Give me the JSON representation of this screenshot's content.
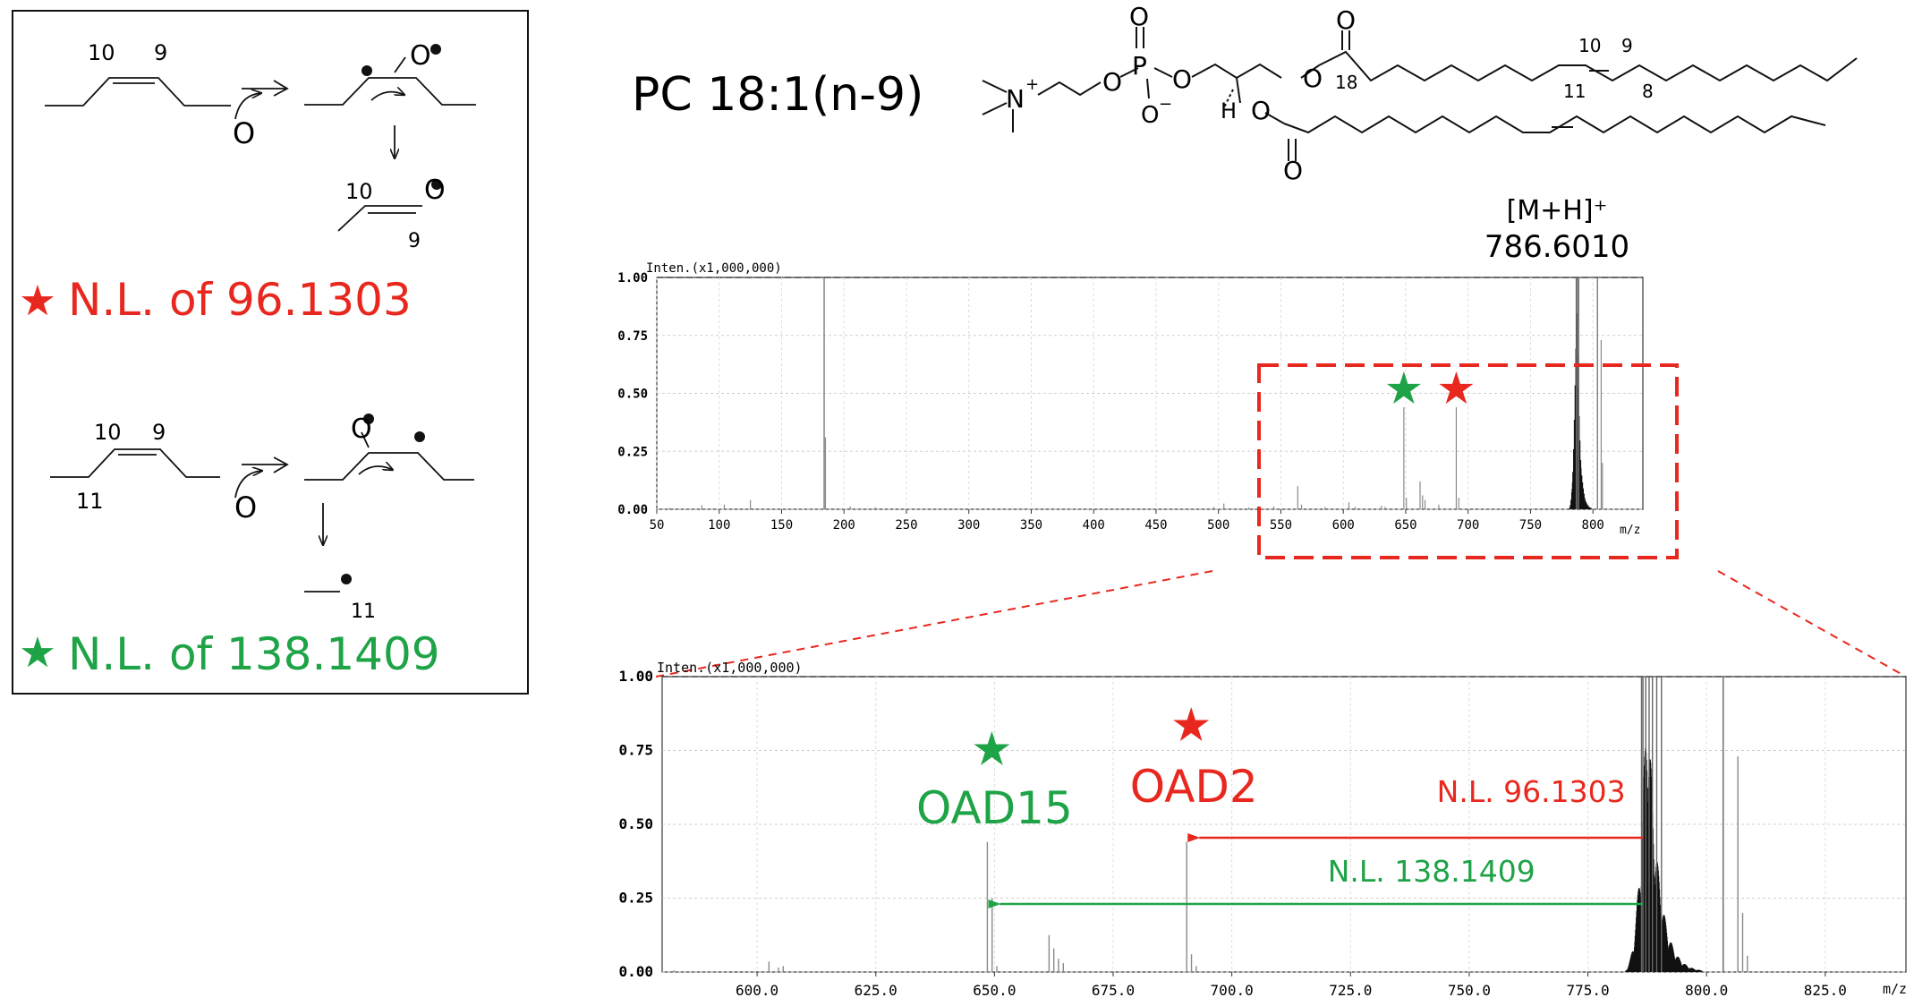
{
  "mechanism": {
    "pathway1": {
      "label_a": "10",
      "label_b": "9",
      "oxygen": "O",
      "product_label_a": "10",
      "product_label_b": "9",
      "loss_label": "N.L. of 96.1303",
      "star_color": "#e8281e"
    },
    "pathway2": {
      "label_a": "10",
      "label_b": "9",
      "label_c": "11",
      "oxygen": "O",
      "fragment_label": "11",
      "loss_label": "N.L. of 138.1409",
      "star_color": "#1fa347"
    }
  },
  "structure": {
    "name": "PC 18:1(n-9)",
    "atom_n": "N",
    "n_charge": "+",
    "atom_p": "P",
    "atom_o": "O",
    "o_minus": "O",
    "minus": "−",
    "atom_h": "H",
    "pos_10": "10",
    "pos_9": "9",
    "pos_11": "11",
    "pos_8": "8",
    "pos_18": "18"
  },
  "precursor": {
    "ion": "[M+H]⁺",
    "mz": "786.6010"
  },
  "chart_data": [
    {
      "type": "bar",
      "id": "full",
      "ylabel": "Inten.(x1,000,000)",
      "xlabel": "m/z",
      "xlim": [
        50,
        840
      ],
      "ylim": [
        0,
        1.0
      ],
      "xticks": [
        50,
        100,
        150,
        200,
        250,
        300,
        350,
        400,
        450,
        500,
        550,
        600,
        650,
        700,
        750,
        800
      ],
      "xtick_labels": [
        "50",
        "100",
        "150",
        "200",
        "250",
        "300",
        "350",
        "400",
        "450",
        "500",
        "550",
        "600",
        "650",
        "700",
        "750",
        "800"
      ],
      "yticks": [
        0,
        0.25,
        0.5,
        0.75,
        1.0
      ],
      "ytick_labels": [
        "0.00",
        "0.25",
        "0.50",
        "0.75",
        "1.00"
      ],
      "peaks": [
        {
          "mz": 60.1,
          "i": 0.006
        },
        {
          "mz": 86.1,
          "i": 0.018
        },
        {
          "mz": 104.1,
          "i": 0.02
        },
        {
          "mz": 125.0,
          "i": 0.04
        },
        {
          "mz": 184.07,
          "i": 1.0
        },
        {
          "mz": 185.1,
          "i": 0.31
        },
        {
          "mz": 205.0,
          "i": 0.012
        },
        {
          "mz": 225.0,
          "i": 0.008
        },
        {
          "mz": 496.3,
          "i": 0.01
        },
        {
          "mz": 504.3,
          "i": 0.025
        },
        {
          "mz": 524.3,
          "i": 0.008
        },
        {
          "mz": 544.3,
          "i": 0.012
        },
        {
          "mz": 563.5,
          "i": 0.1
        },
        {
          "mz": 566.5,
          "i": 0.02
        },
        {
          "mz": 585.5,
          "i": 0.01
        },
        {
          "mz": 604.5,
          "i": 0.03
        },
        {
          "mz": 609.5,
          "i": 0.01
        },
        {
          "mz": 630.5,
          "i": 0.015
        },
        {
          "mz": 633.5,
          "i": 0.01
        },
        {
          "mz": 648.5,
          "i": 0.44
        },
        {
          "mz": 650.5,
          "i": 0.05
        },
        {
          "mz": 661.5,
          "i": 0.12
        },
        {
          "mz": 663.5,
          "i": 0.06
        },
        {
          "mz": 665.5,
          "i": 0.04
        },
        {
          "mz": 676.5,
          "i": 0.02
        },
        {
          "mz": 690.5,
          "i": 0.44
        },
        {
          "mz": 692.5,
          "i": 0.05
        },
        {
          "mz": 786.6,
          "i": 1.0
        },
        {
          "mz": 787.6,
          "i": 1.0
        },
        {
          "mz": 788.6,
          "i": 1.0
        },
        {
          "mz": 803.6,
          "i": 1.0
        },
        {
          "mz": 806.6,
          "i": 0.73
        },
        {
          "mz": 807.6,
          "i": 0.2
        }
      ],
      "cluster": {
        "start": 780,
        "apex": 787,
        "end": 818
      },
      "markers": [
        {
          "mz": 648.5,
          "color": "#1fa347"
        },
        {
          "mz": 690.5,
          "color": "#e8281e"
        }
      ]
    },
    {
      "type": "bar",
      "id": "zoom",
      "ylabel": "Inten.(x1,000,000)",
      "xlabel": "m/z",
      "xlim": [
        580,
        842
      ],
      "ylim": [
        0,
        1.0
      ],
      "xticks": [
        600,
        625,
        650,
        675,
        700,
        725,
        750,
        775,
        800,
        825
      ],
      "xtick_labels": [
        "600.0",
        "625.0",
        "650.0",
        "675.0",
        "700.0",
        "725.0",
        "750.0",
        "775.0",
        "800.0",
        "825.0"
      ],
      "yticks": [
        0,
        0.25,
        0.5,
        0.75,
        1.0
      ],
      "ytick_labels": [
        "0.00",
        "0.25",
        "0.50",
        "0.75",
        "1.00"
      ],
      "peaks": [
        {
          "mz": 582.5,
          "i": 0.006
        },
        {
          "mz": 602.5,
          "i": 0.035
        },
        {
          "mz": 604.5,
          "i": 0.015
        },
        {
          "mz": 605.5,
          "i": 0.02
        },
        {
          "mz": 648.5,
          "i": 0.44
        },
        {
          "mz": 649.5,
          "i": 0.25
        },
        {
          "mz": 650.5,
          "i": 0.02
        },
        {
          "mz": 661.5,
          "i": 0.125
        },
        {
          "mz": 662.5,
          "i": 0.08
        },
        {
          "mz": 663.5,
          "i": 0.045
        },
        {
          "mz": 664.5,
          "i": 0.03
        },
        {
          "mz": 690.5,
          "i": 0.44
        },
        {
          "mz": 691.5,
          "i": 0.06
        },
        {
          "mz": 692.5,
          "i": 0.02
        },
        {
          "mz": 786.3,
          "i": 1.0
        },
        {
          "mz": 786.6,
          "i": 1.0
        },
        {
          "mz": 787.2,
          "i": 1.0
        },
        {
          "mz": 787.9,
          "i": 1.0
        },
        {
          "mz": 788.6,
          "i": 1.0
        },
        {
          "mz": 789.5,
          "i": 1.0
        },
        {
          "mz": 790.5,
          "i": 1.0
        },
        {
          "mz": 803.5,
          "i": 1.0
        },
        {
          "mz": 806.6,
          "i": 0.73
        },
        {
          "mz": 807.6,
          "i": 0.2
        },
        {
          "mz": 808.6,
          "i": 0.055
        }
      ],
      "cluster": {
        "start": 782,
        "apex": 787.5,
        "end": 812
      },
      "markers": [
        {
          "mz": 648.5,
          "color": "#1fa347",
          "label": "OAD15"
        },
        {
          "mz": 690.5,
          "color": "#e8281e",
          "label": "OAD2"
        }
      ],
      "annotations": [
        {
          "text": "N.L. 96.1303",
          "from": 786.6,
          "to": 690.5,
          "color": "#e8281e"
        },
        {
          "text": "N.L. 138.1409",
          "from": 786.6,
          "to": 648.5,
          "color": "#1fa347"
        }
      ]
    }
  ]
}
